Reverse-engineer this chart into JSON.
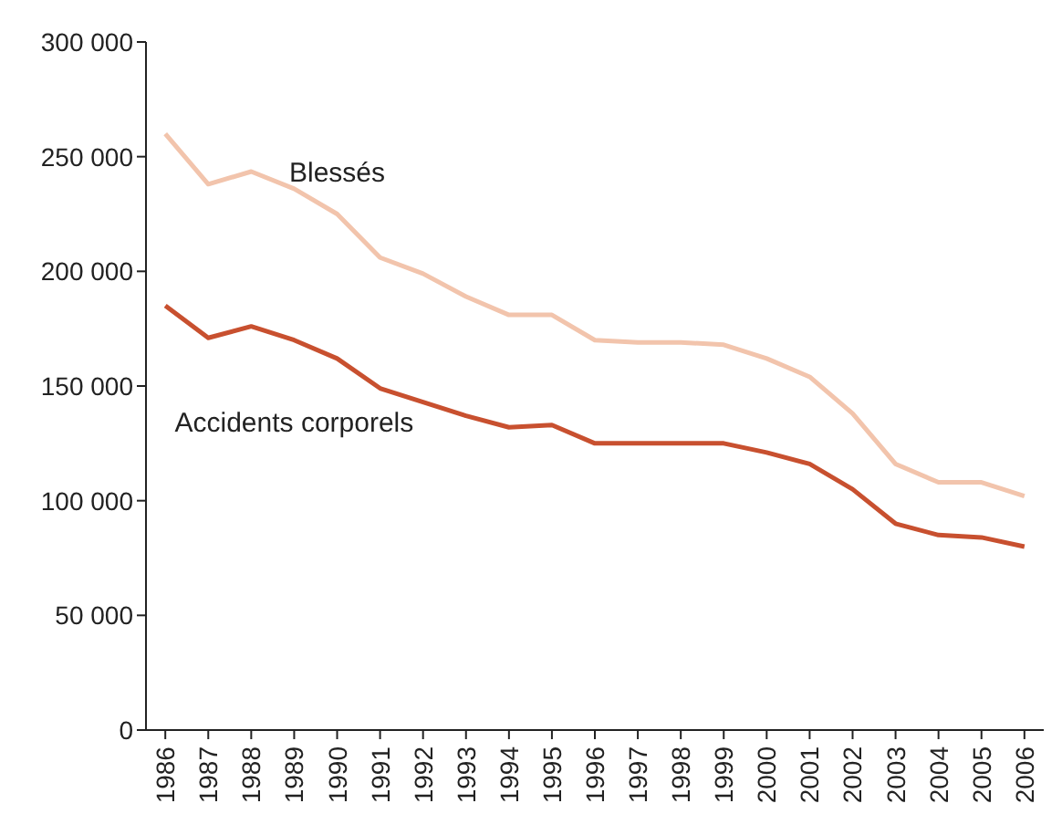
{
  "chart_data": {
    "type": "line",
    "categories": [
      "1986",
      "1987",
      "1988",
      "1989",
      "1990",
      "1991",
      "1992",
      "1993",
      "1994",
      "1995",
      "1996",
      "1997",
      "1998",
      "1999",
      "2000",
      "2001",
      "2002",
      "2003",
      "2004",
      "2005",
      "2006"
    ],
    "series": [
      {
        "name": "Blessés",
        "color": "#f2c4ac",
        "values": [
          260000,
          238000,
          243500,
          236000,
          225000,
          206000,
          199000,
          189000,
          181000,
          181000,
          170000,
          169000,
          169000,
          168000,
          162000,
          154000,
          138000,
          116000,
          108000,
          108000,
          102000
        ]
      },
      {
        "name": "Accidents corporels",
        "color": "#c8502f",
        "values": [
          185000,
          171000,
          176000,
          170000,
          162000,
          149000,
          143000,
          137000,
          132000,
          133000,
          125000,
          125000,
          125000,
          125000,
          121000,
          116000,
          105000,
          90000,
          85000,
          84000,
          80000
        ]
      }
    ],
    "ylim": [
      0,
      300000
    ],
    "yticks": [
      {
        "value": 0,
        "label": "0"
      },
      {
        "value": 50000,
        "label": "50 000"
      },
      {
        "value": 100000,
        "label": "100 000"
      },
      {
        "value": 150000,
        "label": "150 000"
      },
      {
        "value": 200000,
        "label": "200 000"
      },
      {
        "value": 250000,
        "label": "250 000"
      },
      {
        "value": 300000,
        "label": "300 000"
      }
    ],
    "grid": false,
    "legend": false,
    "marker": "none",
    "line_style": "solid"
  }
}
